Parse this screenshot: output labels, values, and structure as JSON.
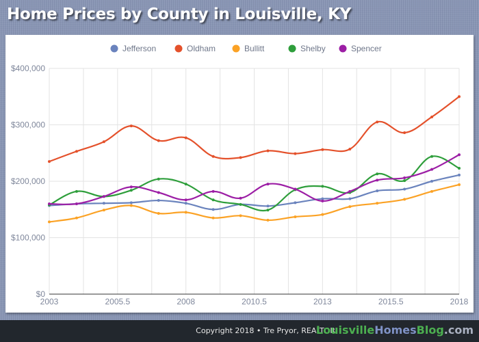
{
  "header": {
    "title": "Home Prices by County in Louisville, KY"
  },
  "footer": {
    "copyright": "Copyright 2018 • Tre Pryor, REALTOR",
    "brand_part1": "Louisville",
    "brand_part2": "Homes",
    "brand_part3": "Blog",
    "brand_part4": ".com"
  },
  "chart_data": {
    "type": "line",
    "title": "Home Prices by County in Louisville, KY",
    "xlabel": "",
    "ylabel": "",
    "legend_position": "top",
    "grid": true,
    "xlim": [
      2003,
      2018
    ],
    "ylim": [
      0,
      400000
    ],
    "x_ticks": [
      2003,
      2005.5,
      2008,
      2010.5,
      2013,
      2015.5,
      2018
    ],
    "x_tick_labels": [
      "2003",
      "2005.5",
      "2008",
      "2010.5",
      "2013",
      "2015.5",
      "2018"
    ],
    "y_ticks": [
      0,
      100000,
      200000,
      300000,
      400000
    ],
    "y_tick_labels": [
      "$0",
      "$100,000",
      "$200,000",
      "$300,000",
      "$400,000"
    ],
    "x": [
      2003,
      2004,
      2005,
      2006,
      2007,
      2008,
      2009,
      2010,
      2011,
      2012,
      2013,
      2014,
      2015,
      2016,
      2017,
      2018
    ],
    "series": [
      {
        "name": "Jefferson",
        "color": "#6a83bd",
        "values": [
          157000,
          160000,
          161000,
          162000,
          166000,
          161000,
          150000,
          159000,
          156000,
          162000,
          169000,
          169000,
          183000,
          186000,
          200000,
          211000
        ]
      },
      {
        "name": "Oldham",
        "color": "#e4512b",
        "values": [
          235000,
          253000,
          270000,
          298000,
          272000,
          277000,
          244000,
          242000,
          254000,
          249000,
          256000,
          257000,
          305000,
          286000,
          314000,
          350000
        ]
      },
      {
        "name": "Bullitt",
        "color": "#fba225",
        "values": [
          128000,
          135000,
          149000,
          157000,
          143000,
          145000,
          135000,
          139000,
          131000,
          137000,
          141000,
          155000,
          161000,
          168000,
          182000,
          194000
        ]
      },
      {
        "name": "Shelby",
        "color": "#2e9e3b",
        "values": [
          158000,
          182000,
          173000,
          184000,
          204000,
          195000,
          167000,
          159000,
          149000,
          185000,
          191000,
          180000,
          213000,
          201000,
          244000,
          223000
        ]
      },
      {
        "name": "Spencer",
        "color": "#9c1ea5",
        "values": [
          160000,
          160000,
          173000,
          190000,
          180000,
          167000,
          182000,
          170000,
          195000,
          186000,
          165000,
          182000,
          202000,
          206000,
          221000,
          247000
        ]
      }
    ]
  }
}
